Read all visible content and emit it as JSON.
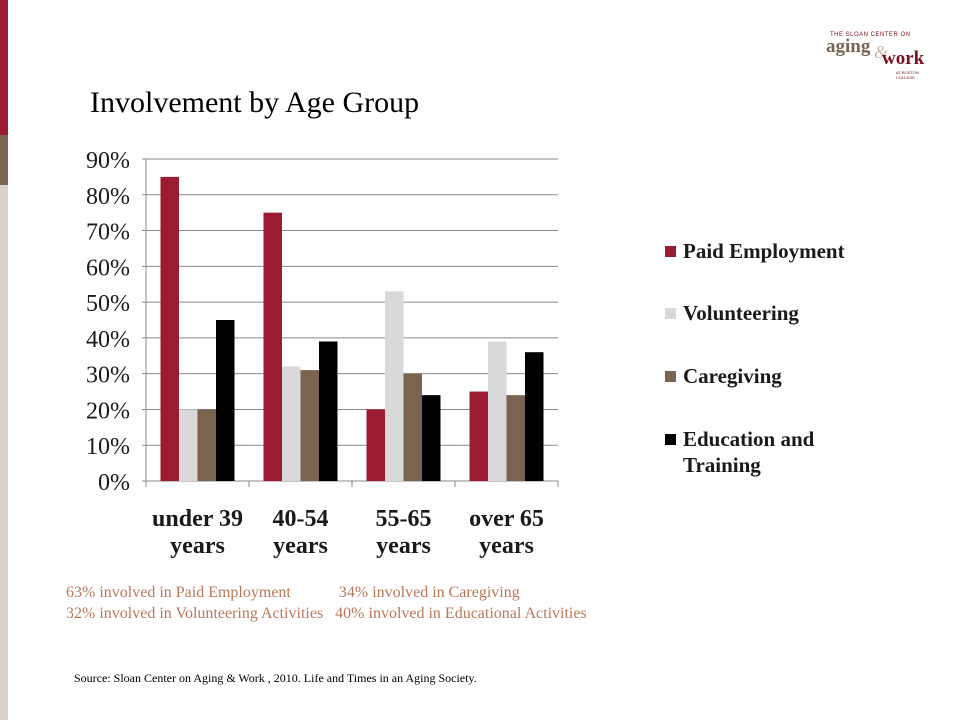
{
  "page_title": "Involvement by Age Group",
  "logo": {
    "small_text": "THE SLOAN CENTER ON",
    "word1": "aging",
    "amp": "&",
    "word2": "work",
    "sub": "AT BOSTON COLLEGE"
  },
  "colors": {
    "accent": "#9b1b30",
    "secondary": "#7a6450",
    "sidebar_light": "#d9d2cb",
    "summary_text": "#b8785a"
  },
  "chart_data": {
    "type": "bar",
    "categories": [
      "under 39 years",
      "40-54 years",
      "55-65 years",
      "over 65 years"
    ],
    "category_lines": [
      [
        "under 39",
        "years"
      ],
      [
        "40-54",
        "years"
      ],
      [
        "55-65",
        "years"
      ],
      [
        "over 65",
        "years"
      ]
    ],
    "series": [
      {
        "name": "Paid Employment",
        "color": "#9b1b30",
        "values": [
          85,
          75,
          20,
          25
        ]
      },
      {
        "name": "Volunteering",
        "color": "#d9d9d9",
        "values": [
          20,
          32,
          53,
          39
        ]
      },
      {
        "name": "Caregiving",
        "color": "#7a6450",
        "values": [
          20,
          31,
          30,
          24
        ]
      },
      {
        "name": "Education and Training",
        "color": "#000000",
        "values": [
          45,
          39,
          24,
          36
        ]
      }
    ],
    "legend_lines": [
      [
        "Paid Employment"
      ],
      [
        "Volunteering"
      ],
      [
        "Caregiving"
      ],
      [
        "Education and",
        "Training"
      ]
    ],
    "ylim": [
      0,
      90
    ],
    "yticks": [
      "0%",
      "10%",
      "20%",
      "30%",
      "40%",
      "50%",
      "60%",
      "70%",
      "80%",
      "90%"
    ],
    "grid": true,
    "legend_position": "right",
    "title": "",
    "xlabel": "",
    "ylabel": ""
  },
  "summary": {
    "line1": "63% involved in Paid Employment            34% involved in Caregiving",
    "line2": "32% involved in Volunteering Activities   40% involved in Educational Activities"
  },
  "source": "Source:  Sloan Center on Aging & Work , 2010.  Life and Times in an Aging Society."
}
